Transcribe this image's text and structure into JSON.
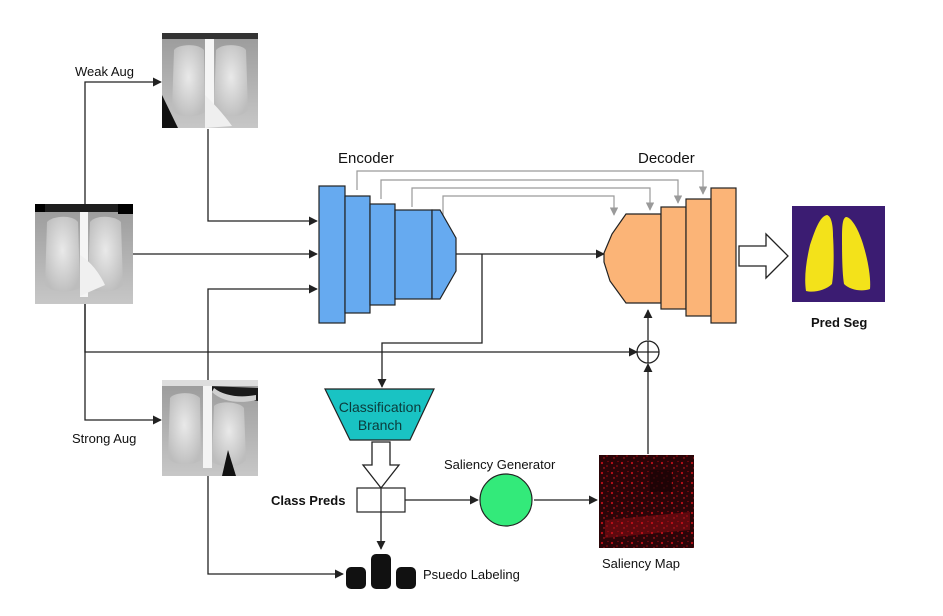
{
  "labels": {
    "weak_aug": "Weak Aug",
    "strong_aug": "Strong Aug",
    "encoder": "Encoder",
    "decoder": "Decoder",
    "classification_line1": "Classification",
    "classification_line2": "Branch",
    "class_preds": "Class Preds",
    "saliency_generator": "Saliency Generator",
    "saliency_map": "Saliency Map",
    "pred_seg": "Pred Seg",
    "pseudo_labeling": "Psuedo Labeling"
  },
  "colors": {
    "encoder_fill": "#66aaf0",
    "decoder_fill": "#fbb477",
    "classification_fill": "#19c3c3",
    "saliency_generator_fill": "#33ea7a",
    "pred_seg_bg": "#3b1c72",
    "pred_seg_lungs": "#f3e21a",
    "saliency_bg": "#2a0508",
    "saliency_speckle": "#c0101a",
    "skip_lines": "#9a9a9a",
    "arrows": "#222222"
  },
  "icons": {
    "sum_node": "circled-plus-icon",
    "hollow_arrow": "hollow-arrow-icon"
  }
}
